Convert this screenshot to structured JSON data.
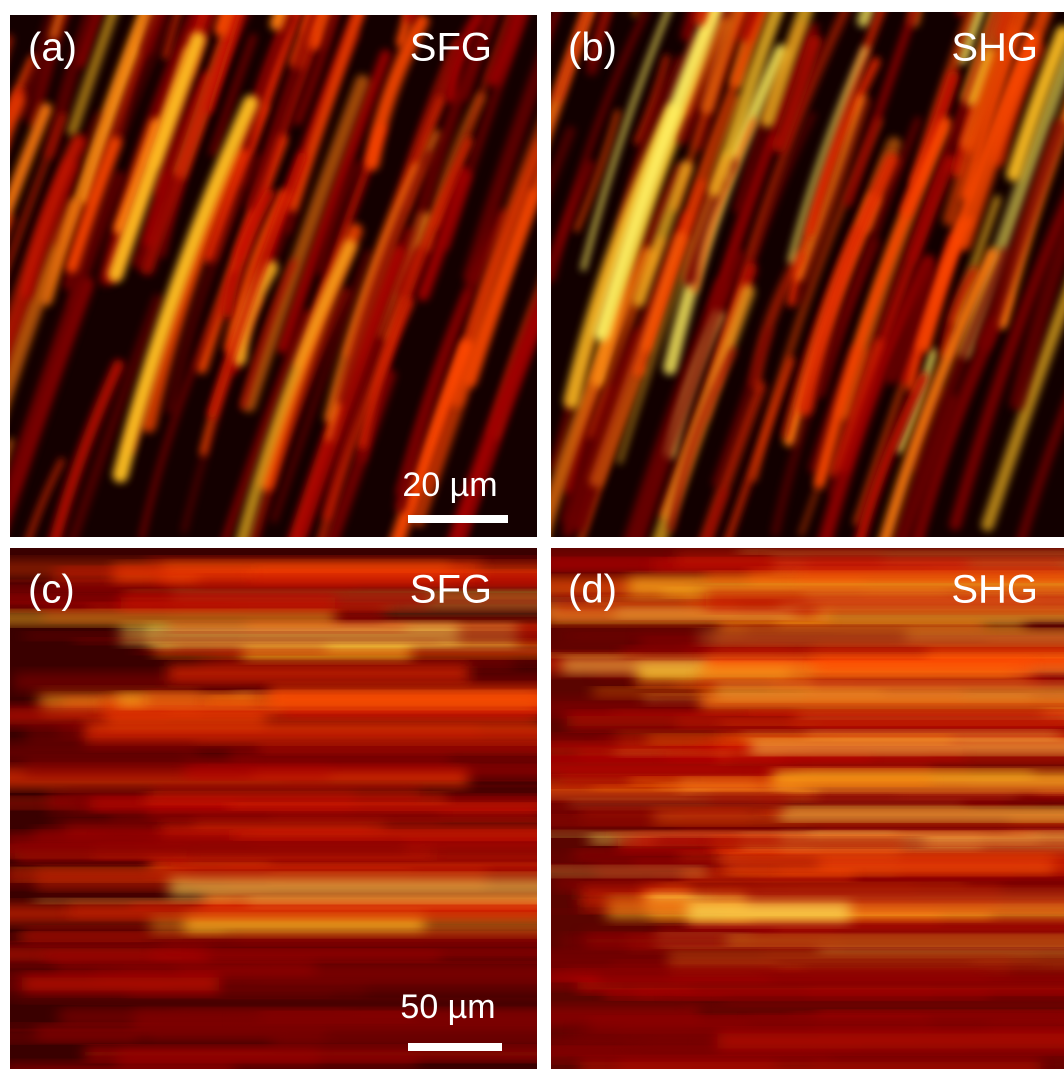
{
  "panels": [
    {
      "label": "(a)",
      "modality": "SFG",
      "scale_bar": "20 µm"
    },
    {
      "label": "(b)",
      "modality": "SHG"
    },
    {
      "label": "(c)",
      "modality": "SFG",
      "scale_bar": "50 µm"
    },
    {
      "label": "(d)",
      "modality": "SHG"
    }
  ]
}
